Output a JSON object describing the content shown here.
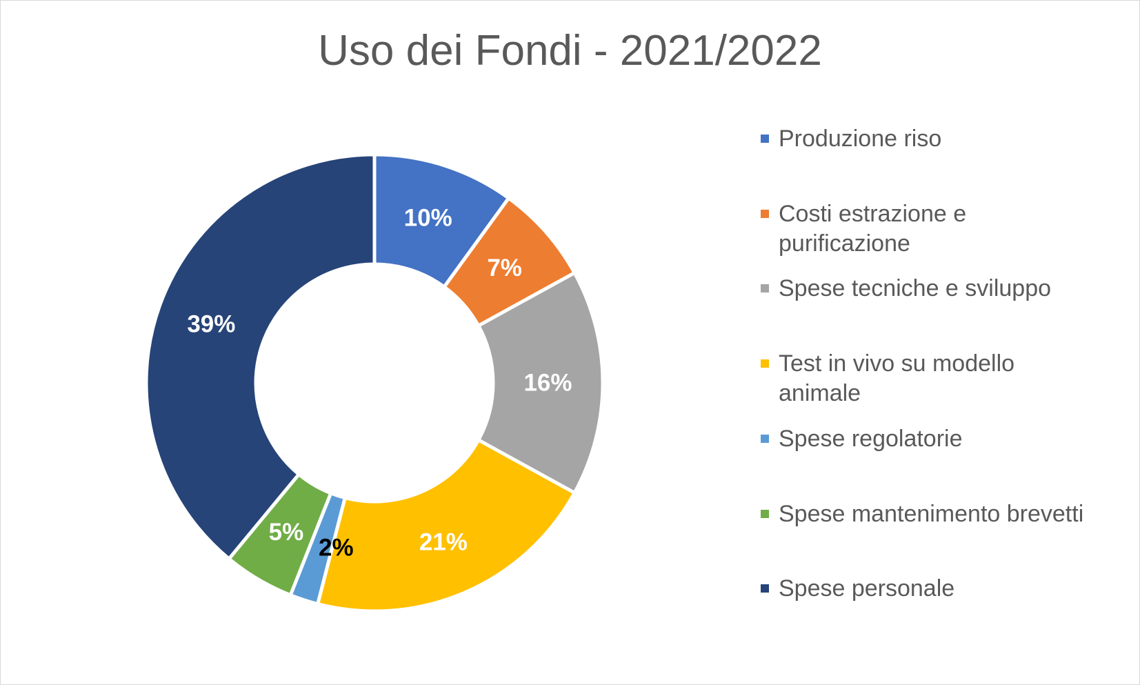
{
  "chart_data": {
    "type": "pie",
    "variant": "doughnut",
    "title": "Uso dei Fondi - 2021/2022",
    "legend_position": "right",
    "categories": [
      "Produzione riso",
      "Costi estrazione e purificazione",
      "Spese tecniche e sviluppo",
      "Test in vivo su modello animale",
      "Spese regolatorie",
      "Spese mantenimento brevetti",
      "Spese personale"
    ],
    "legend_lines": [
      [
        "Produzione riso"
      ],
      [
        "Costi estrazione e",
        "purificazione"
      ],
      [
        "Spese tecniche e sviluppo"
      ],
      [
        "Test in vivo su modello",
        "animale"
      ],
      [
        "Spese regolatorie"
      ],
      [
        "Spese mantenimento brevetti"
      ],
      [
        "Spese personale"
      ]
    ],
    "values": [
      10,
      7,
      16,
      21,
      2,
      5,
      39
    ],
    "data_labels": [
      "10%",
      "7%",
      "16%",
      "21%",
      "2%",
      "5%",
      "39%"
    ],
    "unit": "%",
    "colors": [
      "#4472c4",
      "#ed7d31",
      "#a5a5a5",
      "#ffc000",
      "#5b9bd5",
      "#70ad47",
      "#264478"
    ],
    "label_colors": [
      "#ffffff",
      "#ffffff",
      "#ffffff",
      "#ffffff",
      "#000000",
      "#ffffff",
      "#ffffff"
    ]
  }
}
